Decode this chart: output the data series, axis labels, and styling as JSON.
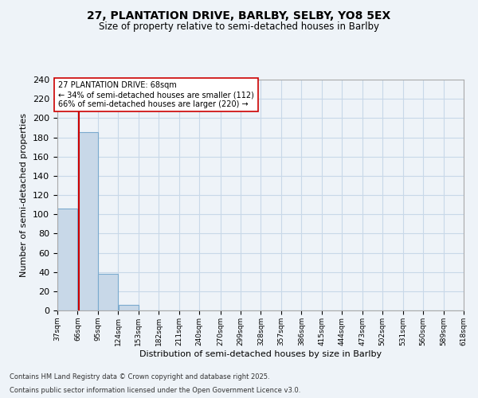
{
  "title_line1": "27, PLANTATION DRIVE, BARLBY, SELBY, YO8 5EX",
  "title_line2": "Size of property relative to semi-detached houses in Barlby",
  "xlabel": "Distribution of semi-detached houses by size in Barlby",
  "ylabel": "Number of semi-detached properties",
  "footnote_line1": "Contains HM Land Registry data © Crown copyright and database right 2025.",
  "footnote_line2": "Contains public sector information licensed under the Open Government Licence v3.0.",
  "bin_edges": [
    37,
    66,
    95,
    124,
    153,
    182,
    211,
    240,
    270,
    299,
    328,
    357,
    386,
    415,
    444,
    473,
    502,
    531,
    560,
    589,
    618
  ],
  "bar_heights": [
    106,
    185,
    38,
    6,
    0,
    0,
    0,
    0,
    0,
    0,
    0,
    0,
    0,
    0,
    0,
    0,
    0,
    0,
    0,
    0
  ],
  "bar_color": "#c8d8e8",
  "bar_edge_color": "#7aaace",
  "property_size": 68,
  "property_line_color": "#cc0000",
  "ylim": [
    0,
    240
  ],
  "yticks": [
    0,
    20,
    40,
    60,
    80,
    100,
    120,
    140,
    160,
    180,
    200,
    220,
    240
  ],
  "annotation_text": "27 PLANTATION DRIVE: 68sqm\n← 34% of semi-detached houses are smaller (112)\n66% of semi-detached houses are larger (220) →",
  "annotation_box_color": "#ffffff",
  "annotation_border_color": "#cc0000",
  "grid_color": "#c8d8e8",
  "background_color": "#eef3f8",
  "tick_labels": [
    "37sqm",
    "66sqm",
    "95sqm",
    "124sqm",
    "153sqm",
    "182sqm",
    "211sqm",
    "240sqm",
    "270sqm",
    "299sqm",
    "328sqm",
    "357sqm",
    "386sqm",
    "415sqm",
    "444sqm",
    "473sqm",
    "502sqm",
    "531sqm",
    "560sqm",
    "589sqm",
    "618sqm"
  ]
}
